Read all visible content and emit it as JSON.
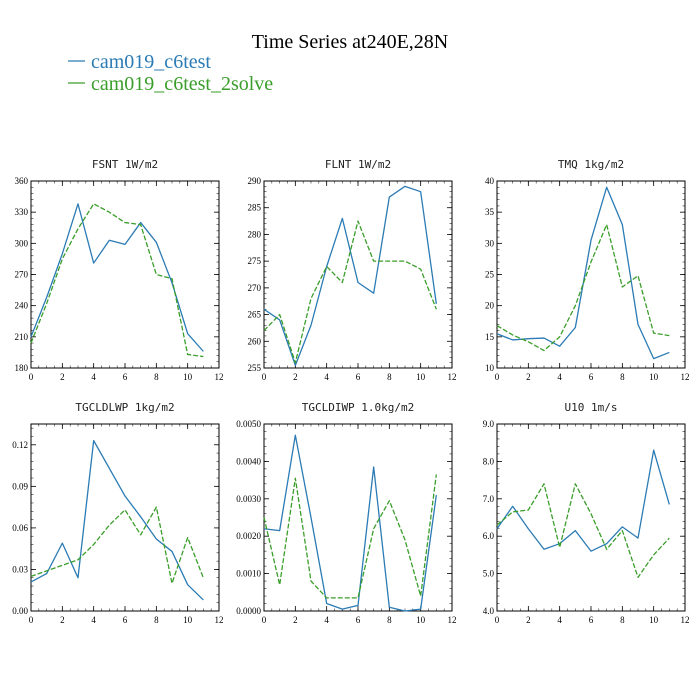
{
  "title": "Time Series at240E,28N",
  "legend": [
    {
      "name": "cam019_c6test",
      "color": "#2b7bb4",
      "dash": "solid"
    },
    {
      "name": "cam019_c6test_2solve",
      "color": "#3a9e2a",
      "dash": "dashed"
    }
  ],
  "chart_data": [
    {
      "type": "line",
      "title": "FSNT  1W/m2",
      "xlim": [
        0,
        12
      ],
      "xticks": [
        "0",
        "2",
        "4",
        "6",
        "8",
        "10",
        "12"
      ],
      "ylim": [
        180,
        360
      ],
      "yticks": [
        "180",
        "210",
        "240",
        "270",
        "300",
        "330",
        "360"
      ],
      "x": [
        0,
        1,
        2,
        3,
        4,
        5,
        6,
        7,
        8,
        9,
        10,
        11
      ],
      "series": [
        {
          "name": "cam019_c6test",
          "values": [
            210,
            248,
            290,
            338,
            281,
            303,
            299,
            320,
            301,
            262,
            213,
            196
          ]
        },
        {
          "name": "cam019_c6test_2solve",
          "values": [
            204,
            242,
            285,
            314,
            338,
            330,
            320,
            318,
            270,
            266,
            193,
            191
          ]
        }
      ]
    },
    {
      "type": "line",
      "title": "FLNT  1W/m2",
      "xlim": [
        0,
        12
      ],
      "xticks": [
        "0",
        "2",
        "4",
        "6",
        "8",
        "10",
        "12"
      ],
      "ylim": [
        255,
        290
      ],
      "yticks": [
        "255",
        "260",
        "265",
        "270",
        "275",
        "280",
        "285",
        "290"
      ],
      "x": [
        0,
        1,
        2,
        3,
        4,
        5,
        6,
        7,
        8,
        9,
        10,
        11
      ],
      "series": [
        {
          "name": "cam019_c6test",
          "values": [
            266,
            264,
            255.5,
            263,
            274,
            283,
            271,
            269,
            287,
            289,
            288,
            267
          ]
        },
        {
          "name": "cam019_c6test_2solve",
          "values": [
            262,
            265,
            256,
            268,
            274,
            271,
            282.5,
            275,
            275,
            275,
            273.5,
            266
          ]
        }
      ]
    },
    {
      "type": "line",
      "title": "TMQ  1kg/m2",
      "xlim": [
        0,
        12
      ],
      "xticks": [
        "0",
        "2",
        "4",
        "6",
        "8",
        "10",
        "12"
      ],
      "ylim": [
        10,
        40
      ],
      "yticks": [
        "10",
        "15",
        "20",
        "25",
        "30",
        "35",
        "40"
      ],
      "x": [
        0,
        1,
        2,
        3,
        4,
        5,
        6,
        7,
        8,
        9,
        10,
        11
      ],
      "series": [
        {
          "name": "cam019_c6test",
          "values": [
            15.5,
            14.5,
            14.7,
            14.8,
            13.5,
            16.5,
            30.5,
            39,
            33,
            17,
            11.5,
            12.5
          ]
        },
        {
          "name": "cam019_c6test_2solve",
          "values": [
            16.8,
            15.3,
            14.2,
            12.8,
            15,
            20,
            27,
            33,
            23,
            24.8,
            15.6,
            15.2
          ]
        }
      ]
    },
    {
      "type": "line",
      "title": "TGCLDLWP  1kg/m2",
      "xlim": [
        0,
        12
      ],
      "xticks": [
        "0",
        "2",
        "4",
        "6",
        "8",
        "10",
        "12"
      ],
      "ylim": [
        0,
        0.135
      ],
      "yticks": [
        "0.00",
        "0.03",
        "0.06",
        "0.09",
        "0.12"
      ],
      "x": [
        0,
        1,
        2,
        3,
        4,
        5,
        6,
        7,
        8,
        9,
        10,
        11
      ],
      "series": [
        {
          "name": "cam019_c6test",
          "values": [
            0.021,
            0.027,
            0.049,
            0.024,
            0.123,
            0.103,
            0.083,
            0.068,
            0.052,
            0.043,
            0.019,
            0.008
          ]
        },
        {
          "name": "cam019_c6test_2solve",
          "values": [
            0.025,
            0.029,
            0.033,
            0.037,
            0.048,
            0.062,
            0.073,
            0.055,
            0.075,
            0.02,
            0.053,
            0.024
          ]
        }
      ]
    },
    {
      "type": "line",
      "title": "TGCLDIWP  1.0kg/m2",
      "xlim": [
        0,
        12
      ],
      "xticks": [
        "0",
        "2",
        "4",
        "6",
        "8",
        "10",
        "12"
      ],
      "ylim": [
        0,
        0.005
      ],
      "yticks": [
        "0.0000",
        "0.0010",
        "0.0020",
        "0.0030",
        "0.0040",
        "0.0050"
      ],
      "x": [
        0,
        1,
        2,
        3,
        4,
        5,
        6,
        7,
        8,
        9,
        10,
        11
      ],
      "series": [
        {
          "name": "cam019_c6test",
          "values": [
            0.0022,
            0.00215,
            0.0047,
            0.0025,
            0.0002,
            5e-05,
            0.00015,
            0.00385,
            0.0001,
            0.0,
            5e-05,
            0.0031
          ]
        },
        {
          "name": "cam019_c6test_2solve",
          "values": [
            0.0025,
            0.0007,
            0.00355,
            0.0008,
            0.00035,
            0.00035,
            0.00035,
            0.0022,
            0.00295,
            0.0019,
            0.0004,
            0.00365
          ]
        }
      ]
    },
    {
      "type": "line",
      "title": "U10  1m/s",
      "xlim": [
        0,
        12
      ],
      "xticks": [
        "0",
        "2",
        "4",
        "6",
        "8",
        "10",
        "12"
      ],
      "ylim": [
        4,
        9
      ],
      "yticks": [
        "4.0",
        "5.0",
        "6.0",
        "7.0",
        "8.0",
        "9.0"
      ],
      "x": [
        0,
        1,
        2,
        3,
        4,
        5,
        6,
        7,
        8,
        9,
        10,
        11
      ],
      "series": [
        {
          "name": "cam019_c6test",
          "values": [
            6.2,
            6.8,
            6.2,
            5.65,
            5.8,
            6.15,
            5.6,
            5.8,
            6.25,
            5.95,
            8.3,
            6.85
          ]
        },
        {
          "name": "cam019_c6test_2solve",
          "values": [
            6.3,
            6.65,
            6.7,
            7.4,
            5.7,
            7.4,
            6.6,
            5.65,
            6.15,
            4.9,
            5.5,
            5.95
          ]
        }
      ]
    }
  ]
}
